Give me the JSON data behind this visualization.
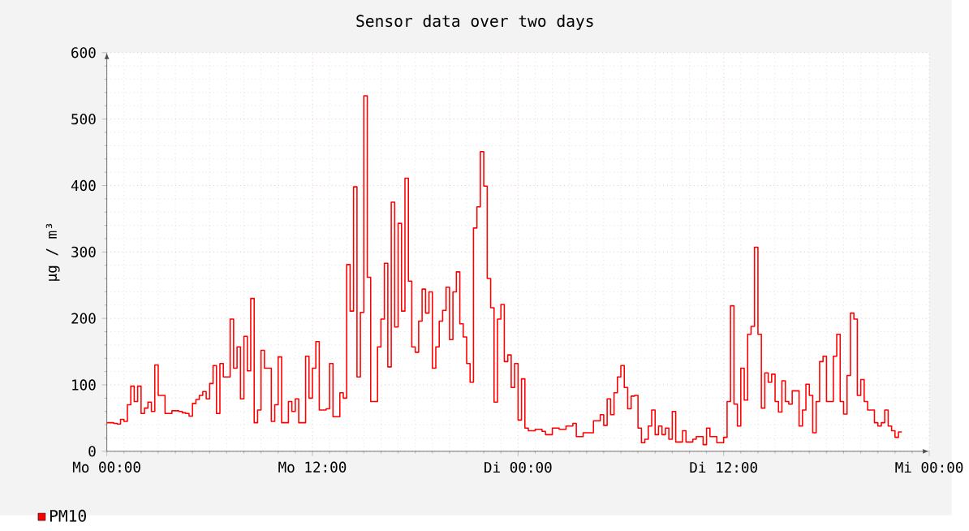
{
  "chart_data": {
    "type": "line",
    "title": "Sensor data over two days",
    "ylabel": "µg / m³",
    "ylim": [
      0,
      600
    ],
    "yticks": [
      0,
      100,
      200,
      300,
      400,
      500,
      600
    ],
    "grid": true,
    "legend": "bottom left",
    "categories": [
      "Mo 00:00",
      null,
      null,
      null,
      null,
      null,
      null,
      null,
      null,
      null,
      null,
      null,
      null,
      null,
      null,
      null,
      null,
      null,
      null,
      null,
      null,
      null,
      null,
      null,
      null,
      null,
      null,
      null,
      null,
      null,
      null,
      null,
      null,
      null,
      null,
      null,
      null,
      null,
      null,
      null,
      null,
      null,
      null,
      null,
      null,
      null,
      null,
      null,
      null,
      null,
      null,
      null,
      null,
      null,
      null,
      null,
      null,
      null,
      null,
      null,
      "Mo 12:00",
      null,
      null,
      null,
      null,
      null,
      null,
      null,
      null,
      null,
      null,
      null,
      null,
      null,
      null,
      null,
      null,
      null,
      null,
      null,
      null,
      null,
      null,
      null,
      null,
      null,
      null,
      null,
      null,
      null,
      null,
      null,
      null,
      null,
      null,
      null,
      null,
      null,
      null,
      null,
      null,
      null,
      null,
      null,
      null,
      null,
      null,
      null,
      null,
      null,
      null,
      null,
      null,
      null,
      null,
      null,
      null,
      null,
      null,
      null,
      "Di 00:00",
      null,
      null,
      null,
      null,
      null,
      null,
      null,
      null,
      null,
      null,
      null,
      null,
      null,
      null,
      null,
      null,
      null,
      null,
      null,
      null,
      null,
      null,
      null,
      null,
      null,
      null,
      null,
      null,
      null,
      null,
      null,
      null,
      null,
      null,
      null,
      null,
      null,
      null,
      null,
      null,
      null,
      null,
      null,
      null,
      null,
      null,
      null,
      null,
      null,
      null,
      null,
      null,
      null,
      null,
      null,
      null,
      null,
      null,
      null,
      "Di 12:00",
      null,
      null,
      null,
      null,
      null,
      null,
      null,
      null,
      null,
      null,
      null,
      null,
      null,
      null,
      null,
      null,
      null,
      null,
      null,
      null,
      null,
      null,
      null,
      null,
      null,
      null,
      null,
      null,
      null,
      null,
      null,
      null,
      null,
      null,
      null,
      null,
      null,
      null,
      null,
      null,
      null,
      null,
      null,
      null,
      null,
      null,
      null,
      null,
      null,
      null,
      null,
      null,
      null,
      null,
      null,
      null,
      null,
      null,
      null,
      "Mi 00:00"
    ],
    "series": [
      {
        "name": "PM10",
        "color": "#ff0000",
        "values": [
          43,
          43,
          42,
          41,
          48,
          45,
          70,
          98,
          75,
          98,
          57,
          65,
          74,
          60,
          130,
          84,
          84,
          57,
          57,
          61,
          61,
          60,
          58,
          57,
          53,
          72,
          78,
          84,
          90,
          79,
          102,
          129,
          57,
          132,
          112,
          112,
          199,
          125,
          157,
          79,
          173,
          121,
          230,
          43,
          62,
          152,
          125,
          125,
          45,
          70,
          142,
          43,
          43,
          75,
          60,
          79,
          43,
          43,
          143,
          80,
          125,
          165,
          62,
          62,
          64,
          132,
          52,
          52,
          88,
          80,
          281,
          211,
          398,
          112,
          209,
          535,
          262,
          75,
          75,
          157,
          199,
          283,
          127,
          375,
          187,
          343,
          211,
          411,
          256,
          157,
          149,
          196,
          244,
          208,
          240,
          125,
          157,
          196,
          212,
          247,
          168,
          240,
          270,
          192,
          172,
          132,
          104,
          336,
          368,
          451,
          399,
          260,
          216,
          74,
          199,
          221,
          135,
          145,
          96,
          132,
          47,
          109,
          35,
          31,
          31,
          33,
          33,
          30,
          25,
          25,
          35,
          35,
          33,
          33,
          38,
          38,
          42,
          22,
          22,
          28,
          28,
          28,
          46,
          46,
          55,
          39,
          79,
          55,
          88,
          112,
          129,
          96,
          64,
          83,
          84,
          35,
          13,
          18,
          38,
          62,
          25,
          38,
          25,
          35,
          18,
          60,
          14,
          14,
          31,
          14,
          14,
          18,
          22,
          22,
          10,
          35,
          22,
          22,
          13,
          13,
          21,
          75,
          219,
          71,
          38,
          125,
          77,
          176,
          188,
          307,
          176,
          65,
          118,
          104,
          116,
          75,
          59,
          106,
          75,
          71,
          91,
          91,
          38,
          62,
          101,
          84,
          28,
          75,
          135,
          143,
          75,
          75,
          143,
          176,
          75,
          56,
          114,
          208,
          199,
          84,
          108,
          75,
          62,
          62,
          43,
          38,
          43,
          62,
          38,
          31,
          21,
          29,
          29,
          null,
          null,
          null,
          null,
          null,
          null,
          null,
          null
        ]
      }
    ]
  }
}
